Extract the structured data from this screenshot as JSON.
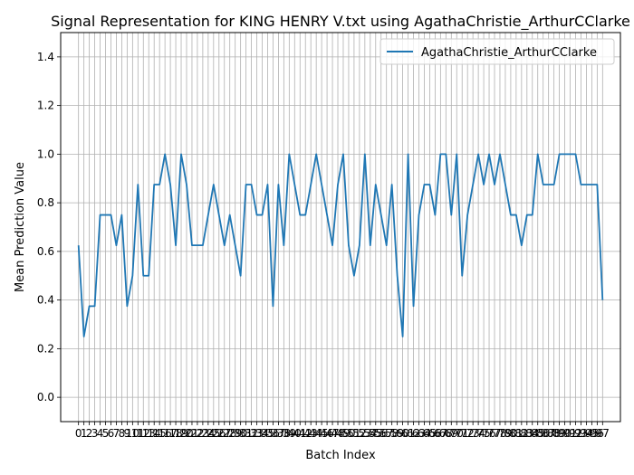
{
  "chart_data": {
    "type": "line",
    "title": "Signal Representation for KING HENRY V.txt using AgathaChristie_ArthurCClarke",
    "xlabel": "Batch Index",
    "ylabel": "Mean Prediction Value",
    "ylim": [
      -0.1,
      1.5
    ],
    "xlim": [
      -3.3,
      100.3
    ],
    "yticks": [
      "0.0",
      "0.2",
      "0.4",
      "0.6",
      "0.8",
      "1.0",
      "1.2",
      "1.4"
    ],
    "ytick_values": [
      0.0,
      0.2,
      0.4,
      0.6,
      0.8,
      1.0,
      1.2,
      1.4
    ],
    "grid": true,
    "legend_position": "top-right",
    "colors": {
      "line": "#1f77b4",
      "grid": "#b0b0b0"
    },
    "series": [
      {
        "name": "AgathaChristie_ArthurCClarke",
        "x": [
          0,
          1,
          2,
          3,
          4,
          5,
          6,
          7,
          8,
          9,
          10,
          11,
          12,
          13,
          14,
          15,
          16,
          17,
          18,
          19,
          20,
          21,
          22,
          23,
          24,
          25,
          26,
          27,
          28,
          29,
          30,
          31,
          32,
          33,
          34,
          35,
          36,
          37,
          38,
          39,
          40,
          41,
          42,
          43,
          44,
          45,
          46,
          47,
          48,
          49,
          50,
          51,
          52,
          53,
          54,
          55,
          56,
          57,
          58,
          59,
          60,
          61,
          62,
          63,
          64,
          65,
          66,
          67,
          68,
          69,
          70,
          71,
          72,
          73,
          74,
          75,
          76,
          77,
          78,
          79,
          80,
          81,
          82,
          83,
          84,
          85,
          86,
          87,
          88,
          89,
          90,
          91,
          92,
          93,
          94,
          95,
          96,
          97
        ],
        "values": [
          0.625,
          0.25,
          0.375,
          0.375,
          0.75,
          0.75,
          0.75,
          0.625,
          0.75,
          0.375,
          0.5,
          0.875,
          0.5,
          0.5,
          0.875,
          0.875,
          1.0,
          0.875,
          0.625,
          1.0,
          0.875,
          0.625,
          0.625,
          0.625,
          0.75,
          0.875,
          0.75,
          0.625,
          0.75,
          0.625,
          0.5,
          0.875,
          0.875,
          0.75,
          0.75,
          0.875,
          0.375,
          0.875,
          0.625,
          1.0,
          0.875,
          0.75,
          0.75,
          0.875,
          1.0,
          0.875,
          0.75,
          0.625,
          0.875,
          1.0,
          0.625,
          0.5,
          0.625,
          1.0,
          0.625,
          0.875,
          0.75,
          0.625,
          0.875,
          0.5,
          0.25,
          1.0,
          0.375,
          0.75,
          0.875,
          0.875,
          0.75,
          1.0,
          1.0,
          0.75,
          1.0,
          0.5,
          0.75,
          0.875,
          1.0,
          0.875,
          1.0,
          0.875,
          1.0,
          0.875,
          0.75,
          0.75,
          0.625,
          0.75,
          0.75,
          1.0,
          0.875,
          0.875,
          0.875,
          1.0,
          1.0,
          1.0,
          1.0,
          0.875,
          0.875,
          0.875,
          0.875,
          0.4
        ]
      }
    ]
  }
}
